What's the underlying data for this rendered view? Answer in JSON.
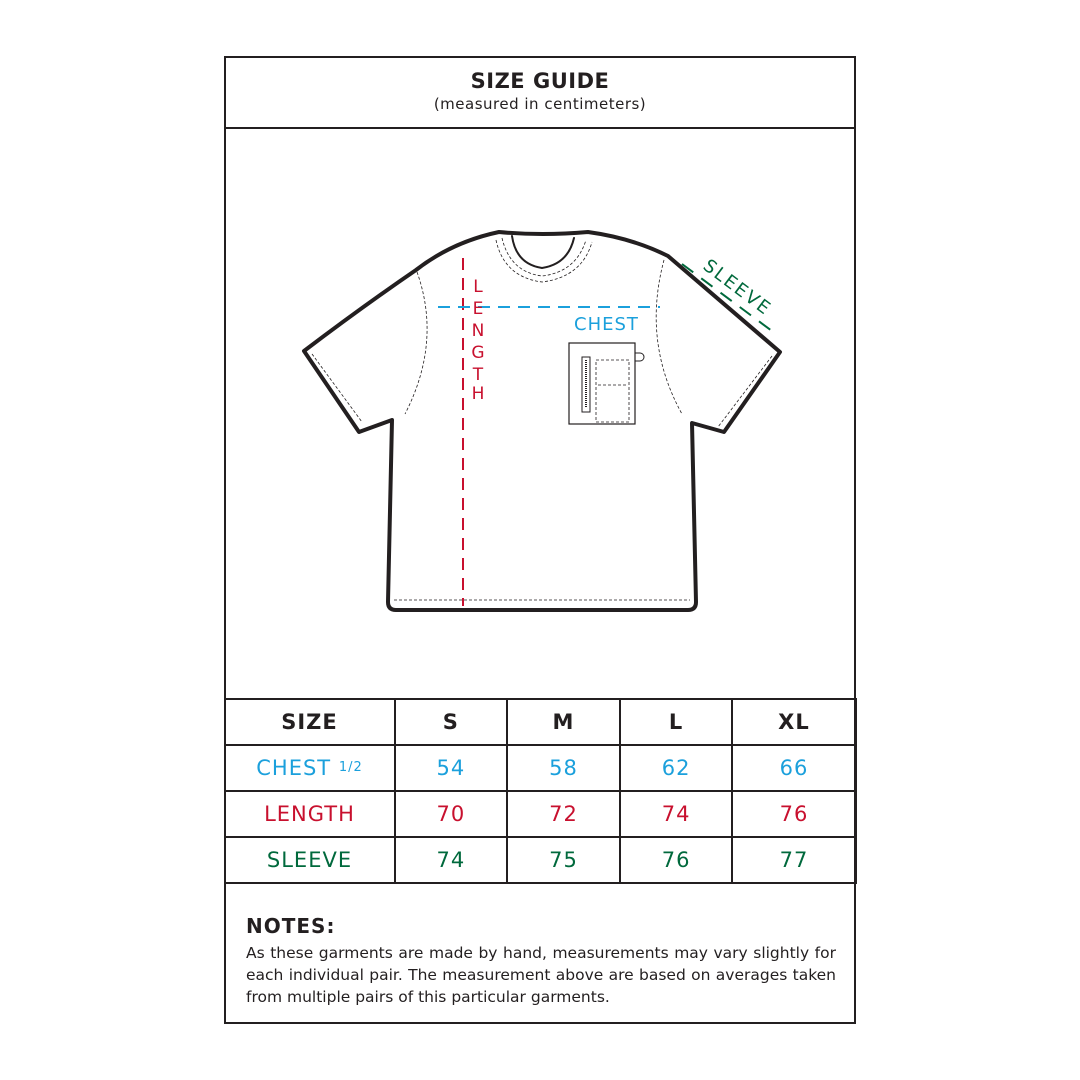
{
  "header": {
    "title": "SIZE GUIDE",
    "subtitle": "(measured in centimeters)"
  },
  "diagram": {
    "labels": {
      "chest": "CHEST",
      "length": "LENGTH",
      "sleeve": "SLEEVE"
    }
  },
  "colors": {
    "chest": "#1ba0dc",
    "length": "#c8102e",
    "sleeve": "#00693c",
    "outline": "#231f20"
  },
  "table": {
    "header": [
      "SIZE",
      "S",
      "M",
      "L",
      "XL"
    ],
    "rows": [
      {
        "label": "CHEST",
        "label_suffix": "1/2",
        "values": [
          "54",
          "58",
          "62",
          "66"
        ]
      },
      {
        "label": "LENGTH",
        "values": [
          "70",
          "72",
          "74",
          "76"
        ]
      },
      {
        "label": "SLEEVE",
        "values": [
          "74",
          "75",
          "76",
          "77"
        ]
      }
    ]
  },
  "notes": {
    "heading": "NOTES:",
    "body": "As these garments are made by hand, measurements may vary slightly for each individual pair. The measurement above are based on averages taken from multiple pairs of this particular garments."
  }
}
